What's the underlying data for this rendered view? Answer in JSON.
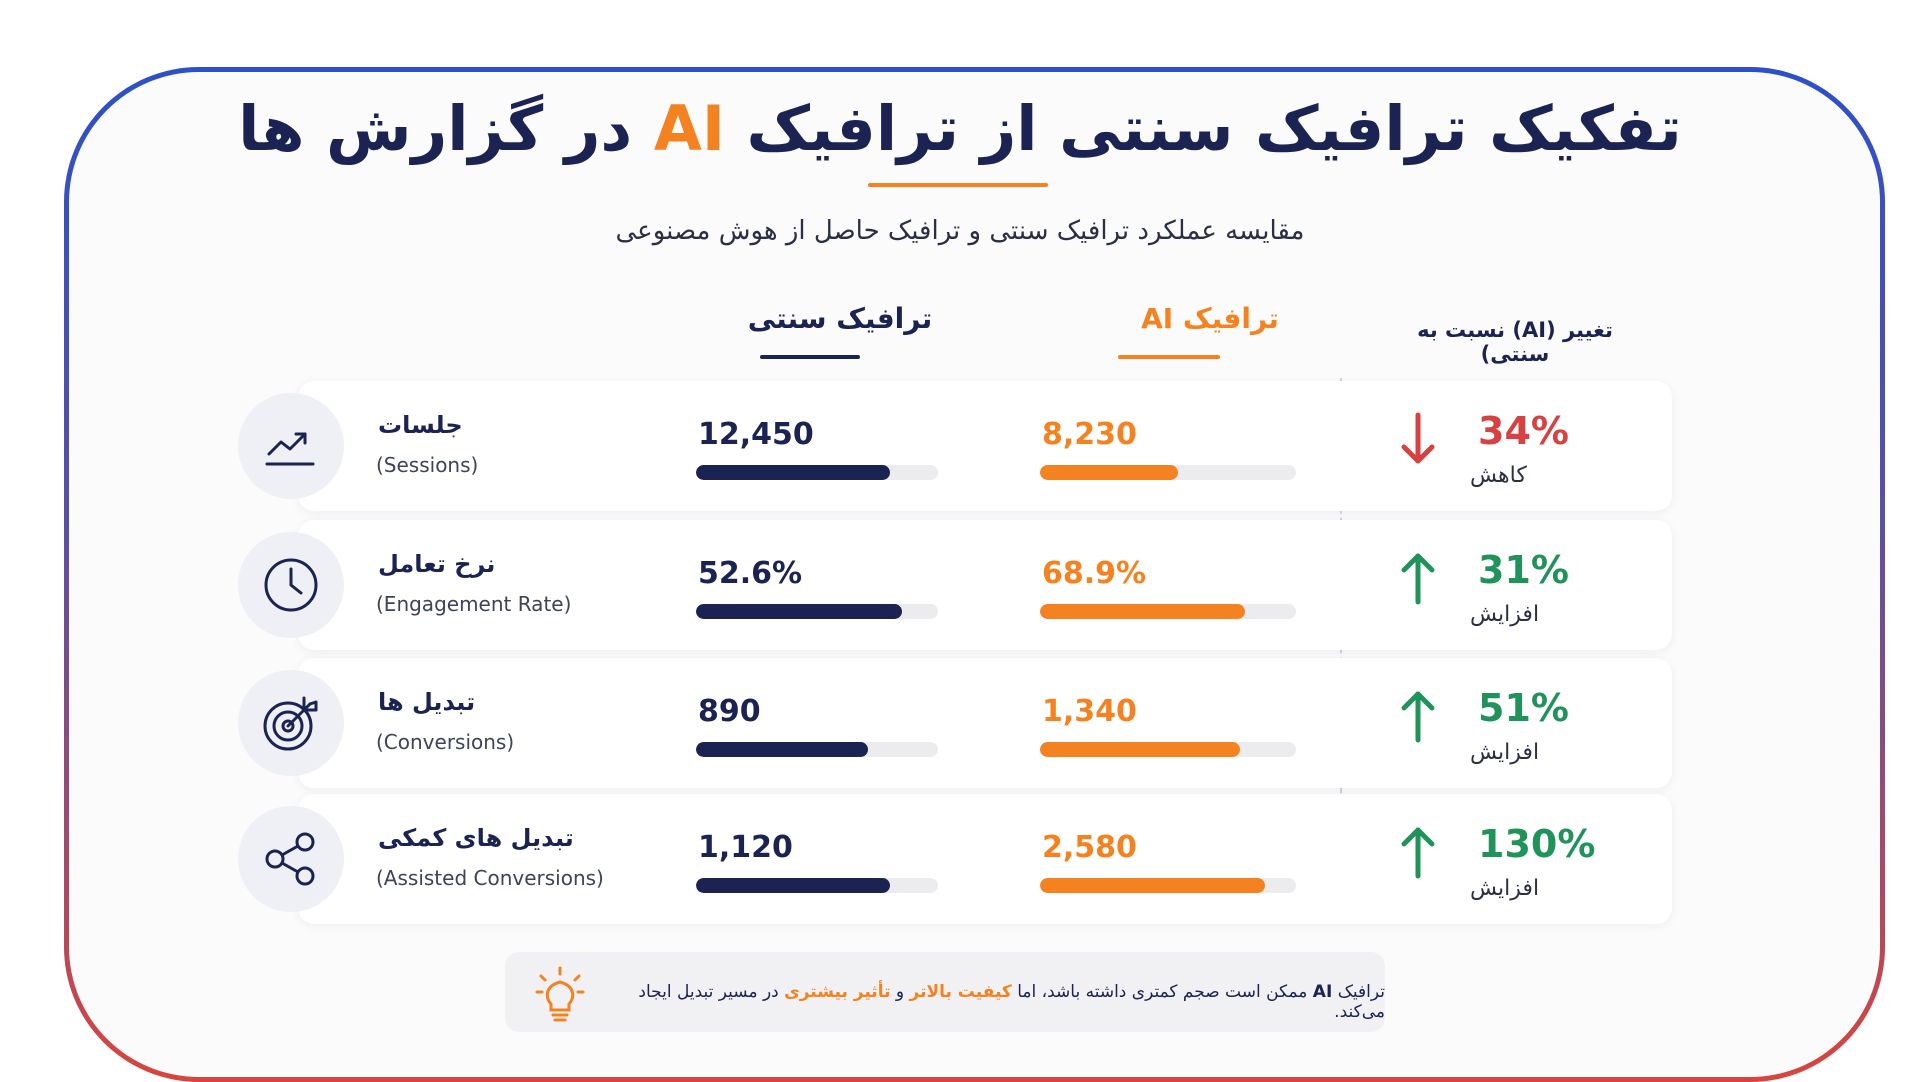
{
  "header": {
    "title_part1": "تفکیک ترافیک سنتی از ترافیک",
    "title_ai": "AI",
    "title_part2": "در گزارش ها",
    "subtitle": "مقایسه عملکرد ترافیک سنتی و ترافیک حاصل از هوش مصنوعی"
  },
  "columns": {
    "traditional": "ترافیک سنتی",
    "ai": "ترافیک AI",
    "change": "تغییر (AI) نسبت به سنتی)"
  },
  "colors": {
    "navy": "#1a2352",
    "orange": "#f58220",
    "red": "#d84141",
    "green": "#20935a"
  },
  "rows": [
    {
      "icon": "trend-line-icon",
      "title": "جلسات",
      "subtitle": "(Sessions)",
      "traditional": "12,450",
      "traditional_bar": 0.8,
      "ai": "8,230",
      "ai_bar": 0.54,
      "direction": "down",
      "change": "34%",
      "change_label": "کاهش"
    },
    {
      "icon": "clock-icon",
      "title": "نرخ تعامل",
      "subtitle": "(Engagement Rate)",
      "traditional": "52.6%",
      "traditional_bar": 0.85,
      "ai": "68.9%",
      "ai_bar": 0.8,
      "direction": "up",
      "change": "31%",
      "change_label": "افزایش"
    },
    {
      "icon": "target-icon",
      "title": "تبدیل ها",
      "subtitle": "(Conversions)",
      "traditional": "890",
      "traditional_bar": 0.71,
      "ai": "1,340",
      "ai_bar": 0.78,
      "direction": "up",
      "change": "51%",
      "change_label": "افزایش"
    },
    {
      "icon": "share-icon",
      "title": "تبدیل های کمکی",
      "subtitle": "(Assisted Conversions)",
      "traditional": "1,120",
      "traditional_bar": 0.8,
      "ai": "2,580",
      "ai_bar": 0.88,
      "direction": "up",
      "change": "130%",
      "change_label": "افزایش"
    }
  ],
  "note": {
    "icon": "lightbulb-icon",
    "part1": "ترافیک",
    "ai": "AI",
    "part2": "ممکن است صجم کمتری داشته باشد، اما",
    "hl1": "کیفیت بالاتر",
    "part3": "و",
    "hl2": "تأثیر بیشتری",
    "part4": "در مسیر تبدیل ایجاد می‌کند."
  }
}
